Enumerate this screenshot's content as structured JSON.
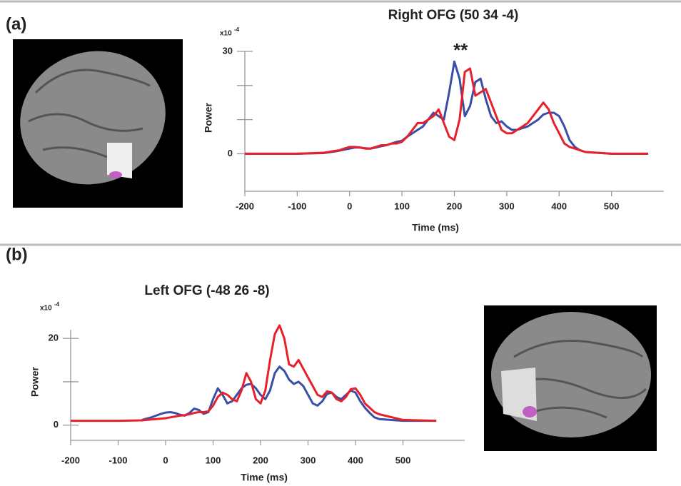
{
  "chart_data": [
    {
      "type": "line",
      "panel_label": "(a)",
      "title": "Right OFG (50 34 -4)",
      "x_label": "Time (ms)",
      "y_label": "Power",
      "scale_base": "x10",
      "scale_exponent": "-4",
      "annotation": "**",
      "x": [
        -200,
        -100,
        -50,
        -40,
        -30,
        -20,
        -10,
        0,
        10,
        20,
        30,
        40,
        50,
        60,
        70,
        80,
        90,
        100,
        110,
        120,
        130,
        140,
        150,
        160,
        170,
        180,
        190,
        200,
        210,
        220,
        230,
        240,
        250,
        260,
        270,
        280,
        290,
        300,
        310,
        320,
        330,
        340,
        350,
        360,
        370,
        380,
        390,
        400,
        410,
        420,
        430,
        440,
        450,
        500,
        570
      ],
      "series": [
        {
          "color": "#3a4ea6",
          "values": [
            0,
            0,
            0.2,
            0.4,
            0.6,
            0.9,
            1.2,
            1.5,
            1.8,
            1.8,
            1.6,
            1.5,
            1.8,
            2.2,
            2.5,
            3,
            3.5,
            3.8,
            5,
            6,
            7,
            8,
            10,
            12,
            11,
            10,
            18,
            27,
            22,
            11,
            14,
            21,
            22,
            16,
            11,
            9,
            9.5,
            8,
            7,
            7,
            7.5,
            8,
            9,
            10,
            11.5,
            12,
            12,
            11,
            8,
            4,
            2,
            1,
            0.5,
            0,
            0
          ]
        },
        {
          "color": "#e8202a",
          "values": [
            0,
            0,
            0.3,
            0.5,
            0.8,
            1,
            1.5,
            2,
            2,
            1.8,
            1.5,
            1.5,
            2,
            2.5,
            2.5,
            3,
            3,
            3.5,
            5,
            7,
            9,
            9,
            10,
            11,
            13,
            9,
            5,
            4,
            10,
            24,
            25,
            17,
            18,
            19,
            15,
            11,
            7,
            6,
            6,
            7,
            8,
            9,
            11,
            13,
            15,
            13,
            9,
            6,
            3,
            2,
            1.5,
            1,
            0.5,
            0,
            0
          ]
        }
      ],
      "xlim": [
        -200,
        600
      ],
      "xticks": [
        -200,
        -100,
        0,
        100,
        200,
        300,
        400,
        500
      ],
      "ylim": [
        -11,
        30
      ],
      "yticks": [
        0,
        30
      ],
      "yminorticks": [
        10,
        20
      ]
    },
    {
      "type": "line",
      "panel_label": "(b)",
      "title": "Left OFG (-48 26 -8)",
      "x_label": "Time (ms)",
      "y_label": "Power",
      "scale_base": "x10",
      "scale_exponent": "-4",
      "x": [
        -200,
        -100,
        -50,
        -40,
        -30,
        -20,
        -10,
        0,
        10,
        20,
        30,
        40,
        50,
        60,
        70,
        80,
        90,
        100,
        110,
        120,
        130,
        140,
        150,
        160,
        170,
        180,
        190,
        200,
        210,
        220,
        230,
        240,
        250,
        260,
        270,
        280,
        290,
        300,
        310,
        320,
        330,
        340,
        350,
        360,
        370,
        380,
        390,
        400,
        410,
        420,
        430,
        440,
        450,
        500,
        570
      ],
      "series": [
        {
          "color": "#3a4ea6",
          "values": [
            null,
            null,
            1.2,
            1.5,
            1.8,
            2.2,
            2.6,
            2.9,
            3,
            2.8,
            2.4,
            2.2,
            2.8,
            3.8,
            3.5,
            2.6,
            3,
            6,
            8.5,
            7,
            5,
            5.5,
            7,
            8.5,
            9.3,
            9.5,
            8.5,
            7,
            6,
            8,
            12,
            13.5,
            12.5,
            10.5,
            9.5,
            10,
            9,
            7,
            5,
            4.5,
            5.5,
            7.2,
            7.5,
            6.5,
            6,
            7,
            8,
            7.5,
            5.5,
            4,
            2.8,
            1.8,
            1.4,
            1,
            1
          ]
        },
        {
          "color": "#e8202a",
          "values": [
            1,
            1,
            1.1,
            1.2,
            1.3,
            1.4,
            1.5,
            1.6,
            1.8,
            2,
            2.2,
            2.3,
            2.5,
            2.8,
            3,
            3,
            3.2,
            4.5,
            6.5,
            7.5,
            7,
            6,
            5.5,
            8,
            12,
            10,
            6,
            5,
            8,
            15,
            21,
            23,
            20,
            14,
            13.5,
            15,
            13,
            11,
            9,
            7,
            6.5,
            7.8,
            7.5,
            6,
            5.5,
            6.5,
            8.3,
            8.5,
            7,
            5,
            4,
            3,
            2.5,
            1.2,
            1
          ]
        }
      ],
      "xlim": [
        -200,
        630
      ],
      "xticks": [
        -200,
        -100,
        0,
        100,
        200,
        300,
        400,
        500
      ],
      "ylim": [
        -3.5,
        22
      ],
      "yticks": [
        0,
        20
      ],
      "yminorticks": [
        10
      ]
    }
  ]
}
